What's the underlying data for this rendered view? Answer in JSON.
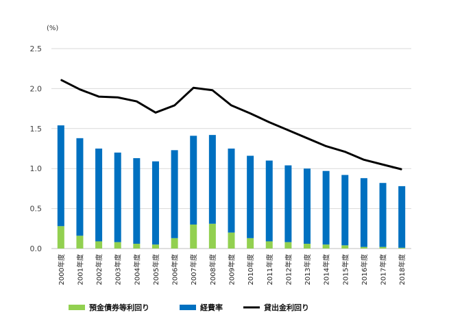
{
  "chart_data": {
    "type": "bar",
    "unit_label": "(%)",
    "categories": [
      "2000年度",
      "2001年度",
      "2002年度",
      "2003年度",
      "2004年度",
      "2005年度",
      "2006年度",
      "2007年度",
      "2008年度",
      "2009年度",
      "2010年度",
      "2011年度",
      "2012年度",
      "2013年度",
      "2014年度",
      "2015年度",
      "2016年度",
      "2017年度",
      "2018年度"
    ],
    "ylim": [
      0,
      2.5
    ],
    "yticks": [
      "0.0",
      "0.5",
      "1.0",
      "1.5",
      "2.0",
      "2.5"
    ],
    "grid": true,
    "legend_position": "bottom",
    "series": [
      {
        "name": "預金債券等利回り",
        "type": "bar",
        "stack": "total",
        "color": "#92d050",
        "values": [
          0.28,
          0.16,
          0.09,
          0.08,
          0.06,
          0.05,
          0.13,
          0.3,
          0.31,
          0.2,
          0.13,
          0.09,
          0.08,
          0.06,
          0.05,
          0.04,
          0.02,
          0.02,
          0.01
        ]
      },
      {
        "name": "経費率",
        "type": "bar",
        "stack": "total",
        "color": "#0070c0",
        "values": [
          1.26,
          1.22,
          1.16,
          1.12,
          1.07,
          1.04,
          1.1,
          1.11,
          1.11,
          1.05,
          1.03,
          1.01,
          0.96,
          0.94,
          0.92,
          0.88,
          0.86,
          0.8,
          0.77
        ]
      },
      {
        "name": "貸出金利回り",
        "type": "line",
        "color": "#000000",
        "values": [
          2.11,
          1.99,
          1.9,
          1.89,
          1.84,
          1.7,
          1.79,
          2.01,
          1.98,
          1.79,
          1.69,
          1.58,
          1.48,
          1.38,
          1.28,
          1.21,
          1.11,
          1.05,
          0.99
        ]
      }
    ]
  }
}
